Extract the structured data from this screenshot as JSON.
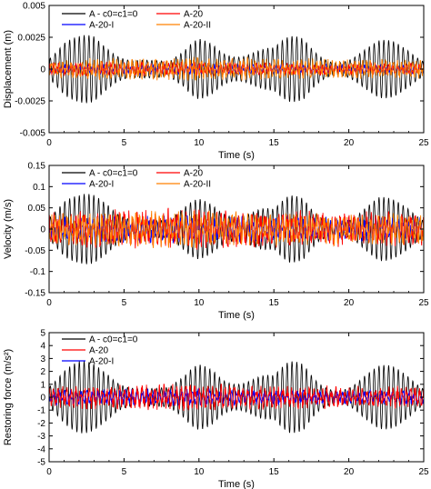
{
  "chart_data": [
    {
      "type": "line",
      "title": "",
      "xlabel": "Time (s)",
      "ylabel": "Displacement (m)",
      "xlim": [
        0,
        25
      ],
      "ylim": [
        -0.005,
        0.005
      ],
      "xticks": [
        0,
        5,
        10,
        15,
        20,
        25
      ],
      "xtick_labels": [
        "0",
        "5",
        "10",
        "15",
        "20",
        "25"
      ],
      "yticks": [
        -0.005,
        -0.0025,
        0,
        0.0025,
        0.005
      ],
      "ytick_labels": [
        "-0.005",
        "-0.0025",
        "0",
        "0.0025",
        "0.005"
      ],
      "grid": false,
      "legend_position": "top-center",
      "series": [
        {
          "name": "A - c0=c1=0",
          "color": "#000000",
          "layer": "back",
          "x": [
            0,
            1,
            2,
            3,
            4,
            5,
            6,
            7,
            8,
            9,
            10,
            11,
            12,
            13,
            14,
            15,
            16,
            17,
            18,
            19,
            20,
            21,
            22,
            23,
            24,
            25
          ],
          "amplitude": [
            0.0012,
            0.0022,
            0.0026,
            0.0032,
            0.003,
            0.0026,
            0.0018,
            0.001,
            0.0006,
            0.0014,
            0.003,
            0.0038,
            0.0034,
            0.0026,
            0.0022,
            0.0018,
            0.0026,
            0.003,
            0.0022,
            0.0016,
            0.0018,
            0.0022,
            0.0024,
            0.0022,
            0.0018,
            0.0012
          ]
        },
        {
          "name": "A-20",
          "color": "#ff0000",
          "layer": "front",
          "x": [
            0,
            5,
            10,
            15,
            20,
            25
          ],
          "amplitude": [
            0.0005,
            0.0006,
            0.0006,
            0.0005,
            0.0005,
            0.0005
          ]
        },
        {
          "name": "A-20-I",
          "color": "#0000ff",
          "layer": "middle",
          "x": [
            0,
            5,
            10,
            15,
            20,
            25
          ],
          "amplitude": [
            0.0004,
            0.0004,
            0.0005,
            0.0004,
            0.0004,
            0.0004
          ]
        },
        {
          "name": "A-20-II",
          "color": "#ff8000",
          "layer": "top",
          "x": [
            0,
            5,
            10,
            15,
            20,
            25
          ],
          "amplitude": [
            0.0008,
            0.0009,
            0.001,
            0.0009,
            0.0008,
            0.0008
          ]
        }
      ]
    },
    {
      "type": "line",
      "title": "",
      "xlabel": "Time (s)",
      "ylabel": "Velocity (m/s)",
      "xlim": [
        0,
        25
      ],
      "ylim": [
        -0.15,
        0.15
      ],
      "xticks": [
        0,
        5,
        10,
        15,
        20,
        25
      ],
      "xtick_labels": [
        "0",
        "5",
        "10",
        "15",
        "20",
        "25"
      ],
      "yticks": [
        -0.15,
        -0.1,
        -0.05,
        0,
        0.05,
        0.1,
        0.15
      ],
      "ytick_labels": [
        "-0.15",
        "-0.1",
        "-0.05",
        "0",
        "0.05",
        "0.1",
        "0.15"
      ],
      "grid": false,
      "legend_position": "top-center",
      "series": [
        {
          "name": "A - c0=c1=0",
          "color": "#000000",
          "layer": "back",
          "x": [
            0,
            1,
            2,
            3,
            4,
            5,
            6,
            7,
            8,
            9,
            10,
            11,
            12,
            13,
            14,
            15,
            16,
            17,
            18,
            19,
            20,
            21,
            22,
            23,
            24,
            25
          ],
          "amplitude": [
            0.04,
            0.07,
            0.08,
            0.1,
            0.11,
            0.09,
            0.06,
            0.03,
            0.02,
            0.05,
            0.09,
            0.11,
            0.1,
            0.08,
            0.07,
            0.05,
            0.08,
            0.09,
            0.06,
            0.05,
            0.05,
            0.07,
            0.08,
            0.07,
            0.06,
            0.04
          ]
        },
        {
          "name": "A-20",
          "color": "#ff0000",
          "layer": "front",
          "x": [
            0,
            5,
            10,
            15,
            20,
            25
          ],
          "amplitude": [
            0.04,
            0.05,
            0.05,
            0.045,
            0.045,
            0.04
          ]
        },
        {
          "name": "A-20-I",
          "color": "#0000ff",
          "layer": "middle",
          "x": [
            0,
            5,
            10,
            15,
            20,
            25
          ],
          "amplitude": [
            0.03,
            0.035,
            0.035,
            0.03,
            0.03,
            0.03
          ]
        },
        {
          "name": "A-20-II",
          "color": "#ff8000",
          "layer": "top",
          "x": [
            0,
            5,
            10,
            15,
            20,
            25
          ],
          "amplitude": [
            0.04,
            0.045,
            0.045,
            0.04,
            0.04,
            0.04
          ]
        }
      ]
    },
    {
      "type": "line",
      "title": "",
      "xlabel": "Time (s)",
      "ylabel": "Restoring force (m/s²)",
      "xlim": [
        0,
        25
      ],
      "ylim": [
        -5,
        5
      ],
      "xticks": [
        0,
        5,
        10,
        15,
        20,
        25
      ],
      "xtick_labels": [
        "0",
        "5",
        "10",
        "15",
        "20",
        "25"
      ],
      "yticks": [
        -5,
        -4,
        -3,
        -2,
        -1,
        0,
        1,
        2,
        3,
        4,
        5
      ],
      "ytick_labels": [
        "-5",
        "-4",
        "-3",
        "-2",
        "-1",
        "0",
        "1",
        "2",
        "3",
        "4",
        "5"
      ],
      "grid": false,
      "legend_position": "top-left",
      "series": [
        {
          "name": "A - c0=c1=0",
          "color": "#000000",
          "layer": "back",
          "x": [
            0,
            1,
            2,
            3,
            4,
            5,
            6,
            7,
            8,
            9,
            10,
            11,
            12,
            13,
            14,
            15,
            16,
            17,
            18,
            19,
            20,
            21,
            22,
            23,
            24,
            25
          ],
          "amplitude": [
            1.2,
            2.2,
            2.8,
            3.2,
            3.4,
            2.8,
            1.8,
            1.0,
            0.8,
            1.6,
            3.2,
            4.1,
            3.6,
            2.8,
            2.4,
            1.8,
            2.8,
            3.2,
            2.2,
            1.7,
            1.8,
            2.4,
            2.6,
            2.4,
            2.0,
            1.3
          ]
        },
        {
          "name": "A-20",
          "color": "#ff0000",
          "layer": "front",
          "x": [
            0,
            5,
            10,
            15,
            20,
            25
          ],
          "amplitude": [
            0.9,
            1.0,
            1.1,
            1.0,
            0.9,
            0.9
          ]
        },
        {
          "name": "A-20-I",
          "color": "#0000ff",
          "layer": "middle",
          "x": [
            0,
            5,
            10,
            15,
            20,
            25
          ],
          "amplitude": [
            0.6,
            0.7,
            0.7,
            0.6,
            0.6,
            0.6
          ]
        }
      ]
    }
  ]
}
